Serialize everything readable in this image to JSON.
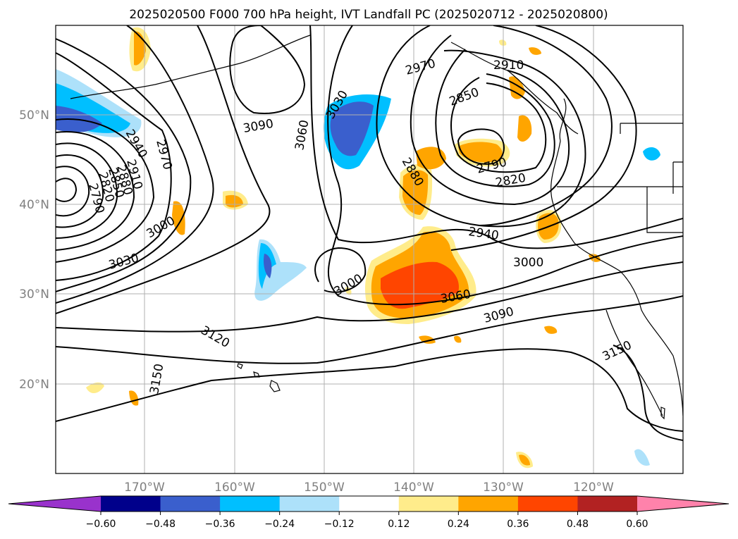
{
  "title": "2025020500 F000 700 hPa height, IVT Landfall PC (2025020712 - 2025020800)",
  "map": {
    "lat_labels": [
      "50°N",
      "40°N",
      "30°N",
      "20°N"
    ],
    "lon_labels": [
      "170°W",
      "160°W",
      "150°W",
      "140°W",
      "130°W",
      "120°W"
    ],
    "contour_labels": [
      "2790",
      "2820",
      "2850",
      "2880",
      "2910",
      "2940",
      "2970",
      "3000",
      "3030",
      "2970",
      "3000",
      "3030",
      "3060",
      "3090",
      "3030",
      "3060",
      "2880",
      "2850",
      "2910",
      "2970",
      "2790",
      "2820",
      "2940",
      "3000",
      "3060",
      "3090",
      "3120",
      "3150",
      "3150"
    ]
  },
  "colorbar": {
    "ticks": [
      "−0.60",
      "−0.48",
      "−0.36",
      "−0.24",
      "−0.12",
      "0.12",
      "0.24",
      "0.36",
      "0.48",
      "0.60"
    ],
    "colors": [
      "#9932CC",
      "#00008B",
      "#3A5FCD",
      "#00BFFF",
      "#ADE1FA",
      "#FFFFFF",
      "#FFEC8B",
      "#FFA500",
      "#FF4500",
      "#B22222",
      "#FF82AB"
    ]
  },
  "colors": {
    "pos_light": "#FFEC8B",
    "pos_mid": "#FFA500",
    "pos_strong": "#FF4500",
    "neg_light": "#ADE1FA",
    "neg_mid": "#00BFFF",
    "neg_strong": "#3A5FCD"
  }
}
